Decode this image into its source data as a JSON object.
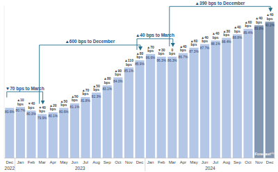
{
  "chart_data": {
    "type": "bar",
    "categories": [
      "Dec",
      "Jan",
      "Feb",
      "Mar",
      "Apr",
      "May",
      "Jun",
      "Jul",
      "Aug",
      "Sep",
      "Oct",
      "Nov",
      "Dec",
      "Jan",
      "Feb",
      "Mar",
      "Apr",
      "May",
      "Jun",
      "Jul",
      "Aug",
      "Sep",
      "Oct",
      "Nov",
      "Dec"
    ],
    "values": [
      80.6,
      80.7,
      80.3,
      79.9,
      80.1,
      80.6,
      81.1,
      81.8,
      82.3,
      83.1,
      84.0,
      85.1,
      85.9,
      86.6,
      86.3,
      86.3,
      86.7,
      87.3,
      87.7,
      88.1,
      88.4,
      88.8,
      89.4,
      89.8,
      90.2
    ],
    "value_labels": [
      "80.6%",
      "80.7%",
      "80.3%",
      "79.9%",
      "80.1%",
      "80.6%",
      "81.1%",
      "81.8%",
      "82.3%",
      "83.1%",
      "84.0%",
      "85.1%",
      "85.9%",
      "86.6%",
      "86.3%",
      "86.3%",
      "86.7%",
      "87.3%",
      "87.7%",
      "88.1%",
      "88.4%",
      "88.8%",
      "89.4%",
      "89.8%",
      "90.2%"
    ],
    "change_labels": [
      null,
      "▲10 bps",
      "▼40 bps",
      "▼40 bps",
      "▲20 bps",
      "▲50 bps",
      "▲50 bps",
      "▲70 bps",
      "▲50 bps",
      "▲80 bps",
      "▲90 bps",
      "▲110 bps",
      "▲80 bps",
      "▲70 bps",
      "▼30 bps",
      "0 bps",
      "▲40 bps",
      "▲60 bps",
      "▲40 bps",
      "▲40 bps",
      "▲30 bps",
      "▲40 bps",
      "▲60 bps",
      "▲40 bps",
      "▲40 bps"
    ],
    "colors": [
      "#b4c7e7",
      "#b4c7e7",
      "#b4c7e7",
      "#b4c7e7",
      "#b4c7e7",
      "#b4c7e7",
      "#b4c7e7",
      "#b4c7e7",
      "#b4c7e7",
      "#b4c7e7",
      "#b4c7e7",
      "#b4c7e7",
      "#b4c7e7",
      "#b4c7e7",
      "#b4c7e7",
      "#b4c7e7",
      "#b4c7e7",
      "#b4c7e7",
      "#b4c7e7",
      "#b4c7e7",
      "#b4c7e7",
      "#b4c7e7",
      "#b4c7e7",
      "#8497b0",
      "#8497b0"
    ],
    "x_groups": [
      {
        "label": "2022",
        "start": 0,
        "end": 0
      },
      {
        "label": "2023",
        "start": 1,
        "end": 12
      },
      {
        "label": "2024",
        "start": 13,
        "end": 24
      }
    ],
    "annotations": [
      {
        "text": "▼70 bps to March",
        "start": 0,
        "end": 3
      },
      {
        "text": "▲600 bps to December",
        "start": 3,
        "end": 12
      },
      {
        "text": "▲40 bps to March",
        "start": 12,
        "end": 15
      },
      {
        "text": "▲390 bps to December",
        "start": 15,
        "end": 24
      }
    ],
    "forecast": {
      "text": "Forecast⁽¹⁾",
      "start": 23,
      "end": 24
    },
    "ylim": [
      75,
      92
    ],
    "yticks": [],
    "tick_labels": "x",
    "data_labels": true,
    "grid": false
  }
}
